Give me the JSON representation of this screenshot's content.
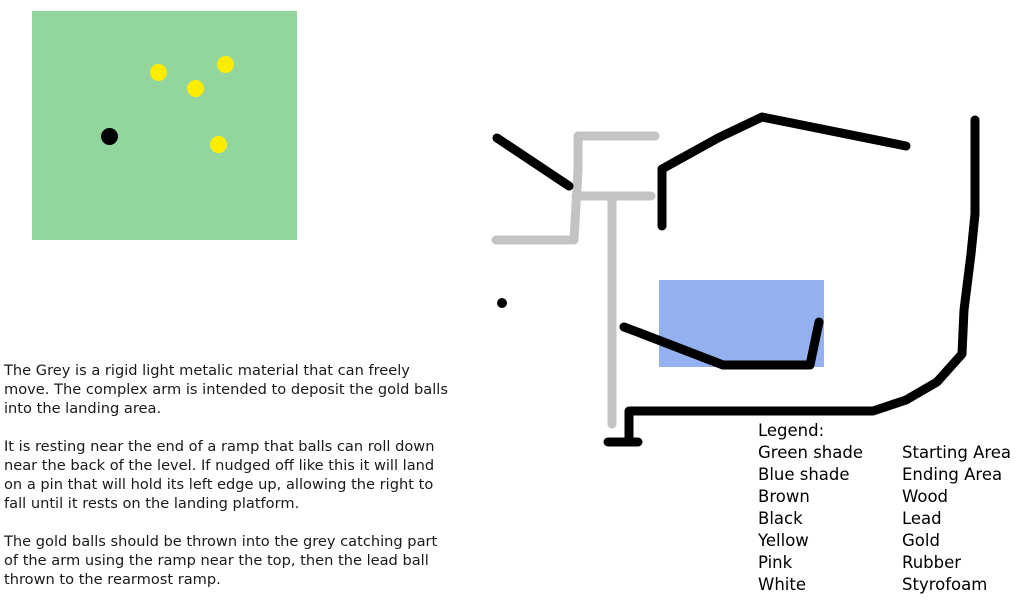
{
  "description": {
    "paragraphs": [
      "The Grey is a rigid light metalic material that can freely move. The complex arm is intended to deposit the gold balls into the landing area.",
      "It is resting near the end of a ramp that balls can roll down near the back of the level. If nudged off like this it will land on a pin that will hold its left edge up, allowing the right to fall until it rests on the landing platform.",
      "The gold balls should be thrown into the grey catching part of the arm using the ramp near the top, then the lead ball thrown to the rearmost ramp."
    ]
  },
  "legend": {
    "title": "Legend:",
    "entries": [
      {
        "color": "Green shade",
        "meaning": "Starting Area"
      },
      {
        "color": "Blue shade",
        "meaning": "Ending Area"
      },
      {
        "color": "Brown",
        "meaning": "Wood"
      },
      {
        "color": "Black",
        "meaning": "Lead"
      },
      {
        "color": "Yellow",
        "meaning": "Gold"
      },
      {
        "color": "Pink",
        "meaning": "Rubber"
      },
      {
        "color": "White",
        "meaning": "Styrofoam"
      }
    ]
  },
  "colors": {
    "starting_area": "#92d69e",
    "ending_area": "#94b0ee",
    "grey_arm": "#c3c3c3",
    "lead": "#000000",
    "gold": "#ffed00"
  }
}
